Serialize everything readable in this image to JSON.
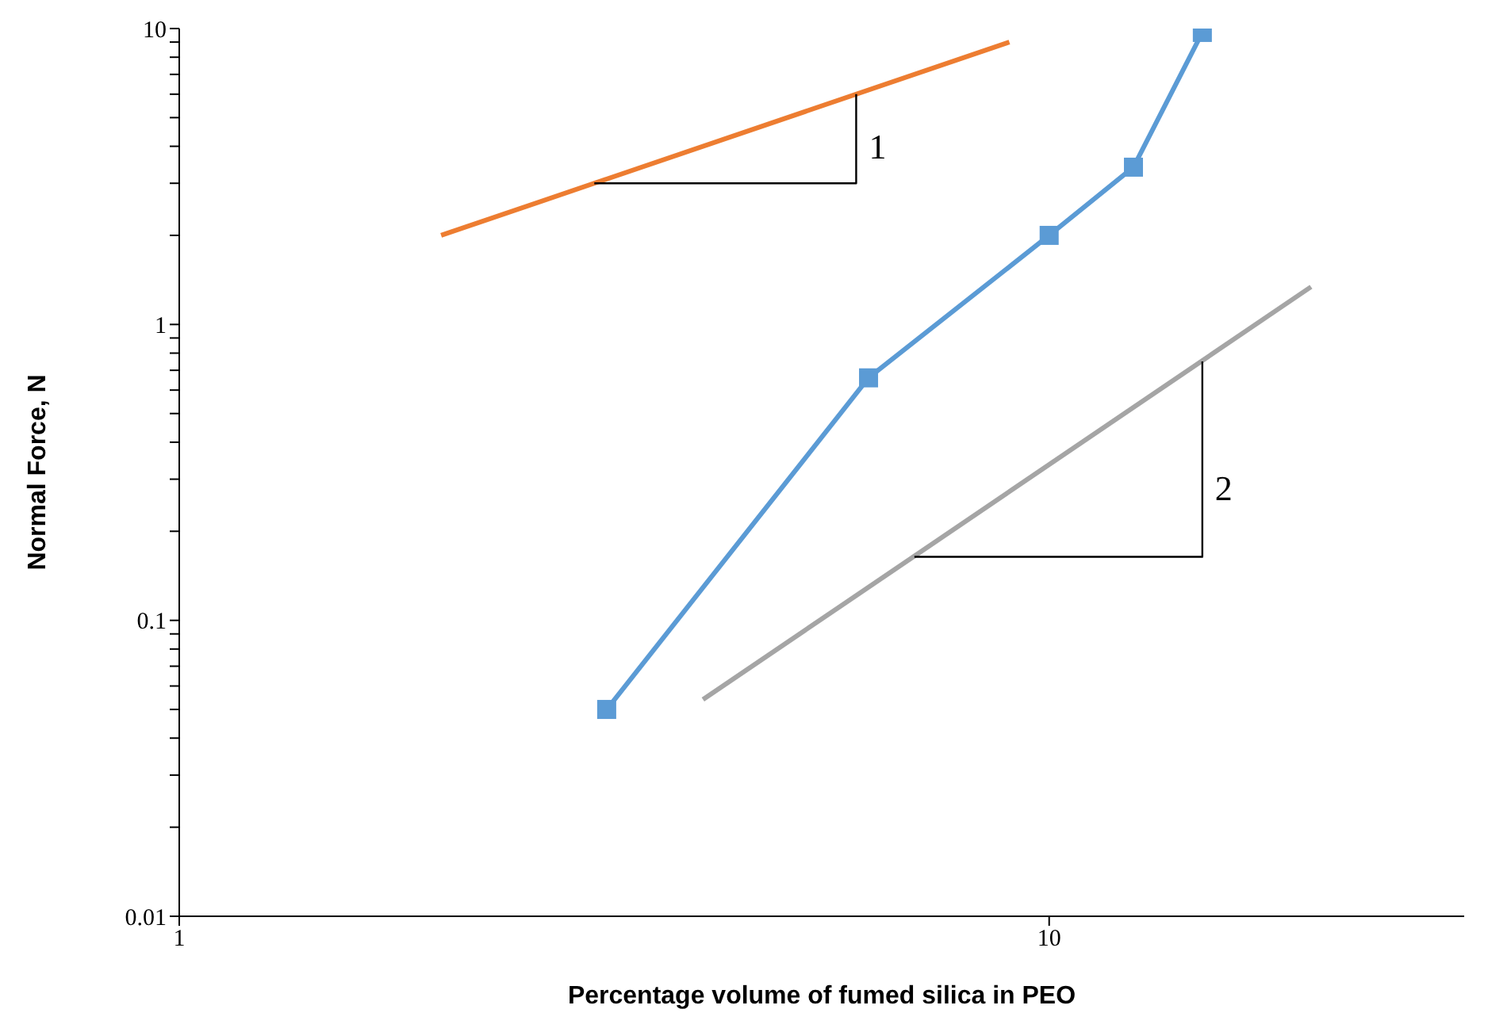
{
  "chart_data": {
    "type": "line",
    "xlabel": "Percentage volume of fumed silica in PEO",
    "ylabel": "Normal Force, N",
    "log": "xy",
    "xlim": [
      1,
      30
    ],
    "xticks": [
      1,
      10
    ],
    "ylim": [
      0.01,
      10
    ],
    "yticks": [
      0.01,
      {
        "value": 0.02,
        "label": null
      },
      {
        "value": 0.03,
        "label": null
      },
      {
        "value": 0.04,
        "label": null
      },
      {
        "value": 0.05,
        "label": null
      },
      {
        "value": 0.06,
        "label": null
      },
      {
        "value": 0.07,
        "label": null
      },
      {
        "value": 0.08,
        "label": null
      },
      {
        "value": 0.09,
        "label": null
      },
      0.1,
      {
        "value": 0.2,
        "label": null
      },
      {
        "value": 0.3,
        "label": null
      },
      {
        "value": 0.4,
        "label": null
      },
      {
        "value": 0.5,
        "label": null
      },
      {
        "value": 0.6,
        "label": null
      },
      {
        "value": 0.7,
        "label": null
      },
      {
        "value": 0.8,
        "label": null
      },
      {
        "value": 0.9,
        "label": null
      },
      1,
      {
        "value": 2,
        "label": null
      },
      {
        "value": 3,
        "label": null
      },
      {
        "value": 4,
        "label": null
      },
      {
        "value": 5,
        "label": null
      },
      {
        "value": 6,
        "label": null
      },
      {
        "value": 7,
        "label": null
      },
      {
        "value": 8,
        "label": null
      },
      {
        "value": 9,
        "label": null
      },
      10
    ],
    "series": [
      {
        "color": "#ed7d31",
        "x": [
          2,
          9
        ],
        "values": [
          2,
          9
        ],
        "marker": "none"
      },
      {
        "color": "#a5a5a5",
        "x": [
          4,
          20
        ],
        "values": [
          0.054,
          1.34
        ],
        "marker": "none"
      },
      {
        "color": "#000000",
        "x": [
          3,
          6,
          6
        ],
        "values": [
          3,
          3,
          6
        ],
        "marker": "none"
      },
      {
        "color": "#000000",
        "x": [
          7,
          15,
          15
        ],
        "values": [
          0.164,
          0.164,
          0.75
        ],
        "marker": "none"
      },
      {
        "color": "#5b9bd5",
        "x": [
          3.1,
          6.2,
          10,
          12.5,
          15
        ],
        "values": [
          0.05,
          0.66,
          2,
          3.4,
          9.7
        ],
        "marker": "square"
      }
    ],
    "annotations": [
      {
        "text": "1",
        "x": 6,
        "y": 4
      },
      {
        "text": "2",
        "x": 15,
        "y": 0.28
      }
    ]
  }
}
